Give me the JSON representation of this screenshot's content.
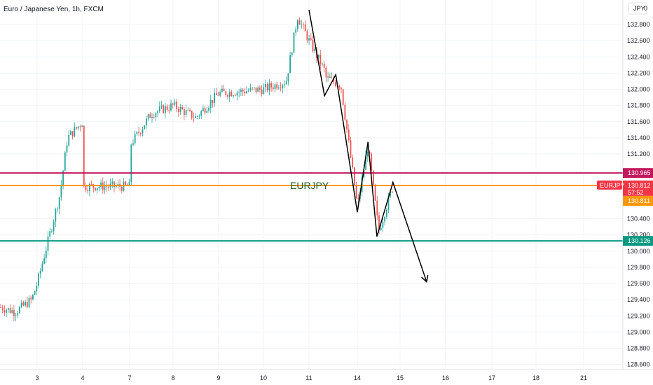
{
  "chart_data": {
    "type": "candlestick",
    "title": "Euro / Japanese Yen, 1h, FXCM",
    "currency_badge": "JPY",
    "currency_badge_value": "0",
    "ylim": [
      128.5,
      133.05
    ],
    "y_ticks": [
      "132.800",
      "132.600",
      "132.400",
      "132.200",
      "132.000",
      "131.800",
      "131.600",
      "131.400",
      "131.200",
      "130.400",
      "130.200",
      "130.000",
      "129.800",
      "129.600",
      "129.400",
      "129.200",
      "129.000",
      "128.800",
      "128.600"
    ],
    "x_ticks": [
      "3",
      "4",
      "7",
      "8",
      "9",
      "10",
      "11",
      "14",
      "15",
      "16",
      "17",
      "18",
      "21"
    ],
    "grid": true,
    "colors": {
      "up": "#26a69a",
      "down": "#ef5350",
      "bg": "#ffffff",
      "grid": "#f0f3fa"
    },
    "horizontal_lines": [
      {
        "value": 130.965,
        "label": "130.965",
        "color": "#c2185b"
      },
      {
        "value": 130.811,
        "label": "130.811",
        "color": "#ff9800"
      },
      {
        "value": 130.126,
        "label": "130.126",
        "color": "#089981"
      }
    ],
    "price_tag": {
      "symbol": "EURJPY",
      "value": 130.812,
      "label": "130.812",
      "countdown": "57:52",
      "color": "#f23645"
    },
    "annotation": {
      "text": "EURJPY",
      "value": 130.812,
      "color": "#1b5e20"
    },
    "pattern_path": [
      {
        "time": "11 00:00",
        "value": 132.98
      },
      {
        "time": "11 11:00",
        "value": 131.92
      },
      {
        "time": "11 19:00",
        "value": 132.18
      },
      {
        "time": "14 00:00",
        "value": 130.48
      },
      {
        "time": "14 06:00",
        "value": 131.35
      },
      {
        "time": "14 11:00",
        "value": 130.18
      },
      {
        "time": "14 20:00",
        "value": 130.85
      },
      {
        "time": "15 14:00",
        "value": 129.62
      }
    ],
    "price_path": [
      [
        "Jul 1",
        129.35
      ],
      [
        "Jul 2",
        129.25
      ],
      [
        "Jul 2 18h",
        129.4
      ],
      [
        "Jul 3",
        129.6
      ],
      [
        "Jul 3 12h",
        130.7
      ],
      [
        "Jul 3 16h",
        131.4
      ],
      [
        "Jul 4",
        131.6
      ],
      [
        "Jul 5",
        131.85
      ],
      [
        "Jul 6",
        131.95
      ],
      [
        "Jul 7",
        131.3
      ],
      [
        "Jul 7 12h",
        131.7
      ],
      [
        "Jul 8",
        131.8
      ],
      [
        "Jul 8 12h",
        131.65
      ],
      [
        "Jul 9",
        131.95
      ],
      [
        "Jul 10",
        132.0
      ],
      [
        "Jul 10 12h",
        132.1
      ],
      [
        "Jul 10 18h",
        132.9
      ],
      [
        "Jul 11",
        132.6
      ],
      [
        "Jul 11 12h",
        132.2
      ],
      [
        "Jul 12",
        132.15
      ],
      [
        "Jul 12 12h",
        132.05
      ],
      [
        "Jul 14",
        130.55
      ],
      [
        "Jul 14 06h",
        131.3
      ],
      [
        "Jul 14 12h",
        130.25
      ],
      [
        "Jul 14 20h",
        130.8
      ]
    ]
  }
}
